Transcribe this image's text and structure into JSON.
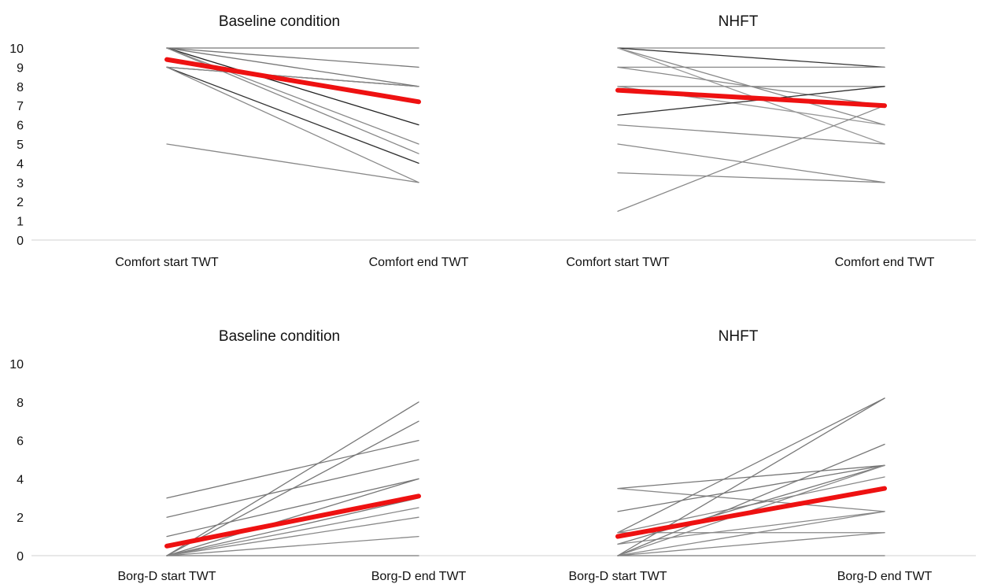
{
  "chart_data": [
    {
      "type": "line",
      "title": "Baseline condition",
      "categories": [
        "Comfort start TWT",
        "Comfort end TWT"
      ],
      "ylim": [
        0,
        10
      ],
      "yticks": [
        0,
        1,
        2,
        3,
        4,
        5,
        6,
        7,
        8,
        9,
        10
      ],
      "grid": false,
      "series": [
        {
          "values": [
            10,
            10
          ],
          "color": "#777777"
        },
        {
          "values": [
            10,
            9
          ],
          "color": "#777777"
        },
        {
          "values": [
            10,
            8
          ],
          "color": "#777777"
        },
        {
          "values": [
            10,
            6
          ],
          "color": "#222222"
        },
        {
          "values": [
            10,
            5
          ],
          "color": "#888888"
        },
        {
          "values": [
            10,
            4.5
          ],
          "color": "#888888"
        },
        {
          "values": [
            9,
            8
          ],
          "color": "#333333"
        },
        {
          "values": [
            9,
            4
          ],
          "color": "#333333"
        },
        {
          "values": [
            9,
            3
          ],
          "color": "#888888"
        },
        {
          "values": [
            9,
            8
          ],
          "color": "#888888"
        },
        {
          "values": [
            5,
            3
          ],
          "color": "#888888"
        },
        {
          "values": [
            9.4,
            7.2
          ],
          "color": "#ee1111",
          "mean": true
        }
      ]
    },
    {
      "type": "line",
      "title": "NHFT",
      "categories": [
        "Comfort start TWT",
        "Comfort end TWT"
      ],
      "ylim": [
        0,
        10
      ],
      "yticks": [],
      "grid": false,
      "series": [
        {
          "values": [
            10,
            10
          ],
          "color": "#888888"
        },
        {
          "values": [
            10,
            9
          ],
          "color": "#333333"
        },
        {
          "values": [
            10,
            6
          ],
          "color": "#888888"
        },
        {
          "values": [
            10,
            5
          ],
          "color": "#999999"
        },
        {
          "values": [
            9,
            9
          ],
          "color": "#888888"
        },
        {
          "values": [
            9,
            7
          ],
          "color": "#888888"
        },
        {
          "values": [
            8,
            8
          ],
          "color": "#888888"
        },
        {
          "values": [
            8,
            6
          ],
          "color": "#999999"
        },
        {
          "values": [
            6.5,
            8
          ],
          "color": "#333333"
        },
        {
          "values": [
            6,
            5
          ],
          "color": "#888888"
        },
        {
          "values": [
            5,
            3
          ],
          "color": "#888888"
        },
        {
          "values": [
            3.5,
            3
          ],
          "color": "#888888"
        },
        {
          "values": [
            1.5,
            7
          ],
          "color": "#888888"
        },
        {
          "values": [
            7.8,
            7.0
          ],
          "color": "#ee1111",
          "mean": true
        }
      ]
    },
    {
      "type": "line",
      "title": "Baseline condition",
      "categories": [
        "Borg-D start TWT",
        "Borg-D end TWT"
      ],
      "ylim": [
        0,
        10
      ],
      "yticks": [
        0,
        2,
        4,
        6,
        8,
        10
      ],
      "grid": false,
      "series": [
        {
          "values": [
            3,
            6
          ],
          "color": "#777777"
        },
        {
          "values": [
            2,
            5
          ],
          "color": "#777777"
        },
        {
          "values": [
            1,
            4
          ],
          "color": "#777777"
        },
        {
          "values": [
            0,
            8
          ],
          "color": "#777777"
        },
        {
          "values": [
            0,
            7
          ],
          "color": "#777777"
        },
        {
          "values": [
            0,
            4
          ],
          "color": "#777777"
        },
        {
          "values": [
            0,
            3
          ],
          "color": "#777777"
        },
        {
          "values": [
            0,
            2.5
          ],
          "color": "#888888"
        },
        {
          "values": [
            0,
            2
          ],
          "color": "#888888"
        },
        {
          "values": [
            0,
            1
          ],
          "color": "#888888"
        },
        {
          "values": [
            0,
            0
          ],
          "color": "#777777"
        },
        {
          "values": [
            0.5,
            3.1
          ],
          "color": "#ee1111",
          "mean": true
        }
      ]
    },
    {
      "type": "line",
      "title": "NHFT",
      "categories": [
        "Borg-D start TWT",
        "Borg-D end TWT"
      ],
      "ylim": [
        0,
        10
      ],
      "yticks": [],
      "grid": false,
      "series": [
        {
          "values": [
            3.5,
            4.7
          ],
          "color": "#777777"
        },
        {
          "values": [
            3.5,
            2.3
          ],
          "color": "#888888"
        },
        {
          "values": [
            2.3,
            4.7
          ],
          "color": "#777777"
        },
        {
          "values": [
            1.2,
            8.2
          ],
          "color": "#777777"
        },
        {
          "values": [
            1.2,
            4.1
          ],
          "color": "#888888"
        },
        {
          "values": [
            1.2,
            1.2
          ],
          "color": "#888888"
        },
        {
          "values": [
            0.6,
            4.7
          ],
          "color": "#777777"
        },
        {
          "values": [
            0.6,
            2.3
          ],
          "color": "#888888"
        },
        {
          "values": [
            0,
            8.2
          ],
          "color": "#777777"
        },
        {
          "values": [
            0,
            5.8
          ],
          "color": "#777777"
        },
        {
          "values": [
            0,
            4.7
          ],
          "color": "#888888"
        },
        {
          "values": [
            0,
            2.3
          ],
          "color": "#888888"
        },
        {
          "values": [
            0,
            1.2
          ],
          "color": "#888888"
        },
        {
          "values": [
            0,
            0
          ],
          "color": "#777777"
        },
        {
          "values": [
            1.0,
            3.5
          ],
          "color": "#ee1111",
          "mean": true
        }
      ]
    }
  ]
}
